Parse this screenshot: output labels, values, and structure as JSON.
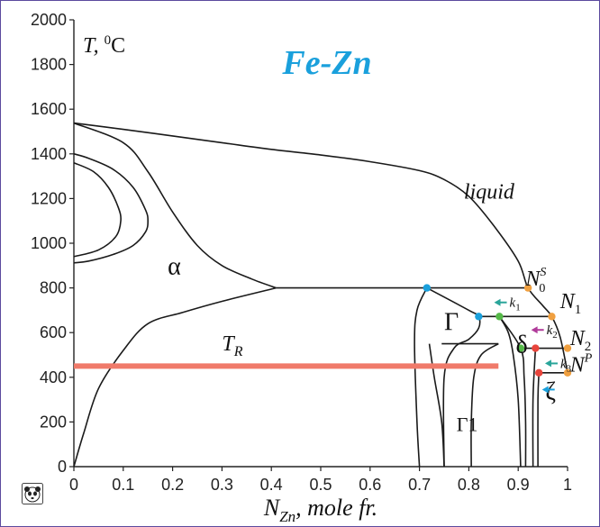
{
  "chart_data": {
    "type": "line",
    "title": "Fe-Zn",
    "title_color": "#1aa0dc",
    "xlabel": "N_Zn, mole fr.",
    "ylabel": "T, 0C",
    "xlim": [
      0,
      1
    ],
    "ylim": [
      0,
      2000
    ],
    "x_ticks": [
      0,
      0.1,
      0.2,
      0.3,
      0.4,
      0.5,
      0.6,
      0.7,
      0.8,
      0.9,
      1
    ],
    "x_tick_labels": [
      "0",
      "0.1",
      "0.2",
      "0.3",
      "0.4",
      "0.5",
      "0.6",
      "0.7",
      "0.8",
      "0.9",
      "1"
    ],
    "y_ticks": [
      0,
      200,
      400,
      600,
      800,
      1000,
      1200,
      1400,
      1600,
      1800,
      2000
    ],
    "y_tick_labels": [
      "0",
      "200",
      "400",
      "600",
      "800",
      "1000",
      "1200",
      "1400",
      "1600",
      "1800",
      "2000"
    ],
    "grid": false,
    "phase_labels": [
      {
        "text": "liquid",
        "x": 0.79,
        "y": 1200
      },
      {
        "text": "α",
        "x": 0.19,
        "y": 860
      },
      {
        "text": "Γ",
        "x": 0.75,
        "y": 610
      },
      {
        "text": "δ",
        "x": 0.895,
        "y": 510
      },
      {
        "text": "Γ1",
        "x": 0.775,
        "y": 160
      },
      {
        "text": "ζ",
        "x": 0.955,
        "y": 300
      }
    ],
    "tr_line": {
      "label": "T_R",
      "y": 450,
      "x_start": 0,
      "x_end": 0.86,
      "color": "#f07a6a"
    },
    "tr_label_pos": {
      "x": 0.3,
      "y": 520
    },
    "node_labels": [
      {
        "base": "N",
        "sub": "0",
        "sup": "S",
        "x": 0.915,
        "y": 810
      },
      {
        "base": "N",
        "sub": "1",
        "sup": "",
        "x": 0.985,
        "y": 710
      },
      {
        "base": "N",
        "sub": "2",
        "sup": "",
        "x": 1.005,
        "y": 545
      },
      {
        "base": "N",
        "sub": "",
        "sup": "P",
        "x": 1.005,
        "y": 425
      }
    ],
    "markers": [
      {
        "x": 0.715,
        "y": 800,
        "color": "#1aa0dc"
      },
      {
        "x": 0.82,
        "y": 672,
        "color": "#1aa0dc"
      },
      {
        "x": 0.92,
        "y": 800,
        "color": "#f0a040"
      },
      {
        "x": 0.968,
        "y": 672,
        "color": "#f0a040"
      },
      {
        "x": 0.862,
        "y": 672,
        "color": "#55b948"
      },
      {
        "x": 0.905,
        "y": 530,
        "color": "#55b948"
      },
      {
        "x": 0.935,
        "y": 530,
        "color": "#e8453c"
      },
      {
        "x": 0.942,
        "y": 420,
        "color": "#e8453c"
      },
      {
        "x": 1.0,
        "y": 530,
        "color": "#f0a040"
      },
      {
        "x": 1.0,
        "y": 420,
        "color": "#f0a040"
      }
    ],
    "arrows": [
      {
        "label": "k",
        "sub": "1",
        "x": 0.855,
        "y": 735,
        "color": "#2aa59a"
      },
      {
        "label": "k",
        "sub": "2",
        "x": 0.93,
        "y": 612,
        "color": "#b03b9a"
      },
      {
        "label": "k",
        "sub": "3",
        "x": 0.958,
        "y": 462,
        "color": "#2aa59a"
      },
      {
        "label": "",
        "sub": "",
        "x": 0.952,
        "y": 345,
        "color": "#1aa0dc"
      }
    ],
    "curves": [
      {
        "name": "liquidus",
        "points": [
          [
            0,
            1538
          ],
          [
            0.1,
            1510
          ],
          [
            0.2,
            1480
          ],
          [
            0.3,
            1450
          ],
          [
            0.4,
            1420
          ],
          [
            0.5,
            1395
          ],
          [
            0.6,
            1365
          ],
          [
            0.7,
            1325
          ],
          [
            0.75,
            1285
          ],
          [
            0.8,
            1210
          ],
          [
            0.85,
            1080
          ],
          [
            0.9,
            920
          ],
          [
            0.92,
            800
          ],
          [
            0.95,
            720
          ],
          [
            0.968,
            672
          ],
          [
            0.985,
            580
          ],
          [
            1.0,
            420
          ]
        ]
      },
      {
        "name": "alpha-upper",
        "points": [
          [
            0,
            1538
          ],
          [
            0.1,
            1450
          ],
          [
            0.15,
            1320
          ],
          [
            0.2,
            1140
          ],
          [
            0.25,
            990
          ],
          [
            0.3,
            900
          ],
          [
            0.36,
            840
          ],
          [
            0.41,
            800
          ]
        ]
      },
      {
        "name": "alpha-gamma-loop",
        "points": [
          [
            0,
            1400
          ],
          [
            0.03,
            1380
          ],
          [
            0.08,
            1330
          ],
          [
            0.12,
            1250
          ],
          [
            0.145,
            1150
          ],
          [
            0.15,
            1100
          ],
          [
            0.145,
            1050
          ],
          [
            0.12,
            990
          ],
          [
            0.08,
            950
          ],
          [
            0.03,
            920
          ],
          [
            0,
            912
          ]
        ]
      },
      {
        "name": "alpha-gamma-loop-inner",
        "points": [
          [
            0,
            1360
          ],
          [
            0.04,
            1320
          ],
          [
            0.07,
            1250
          ],
          [
            0.09,
            1160
          ],
          [
            0.095,
            1100
          ],
          [
            0.085,
            1030
          ],
          [
            0.05,
            970
          ],
          [
            0,
            940
          ]
        ]
      },
      {
        "name": "alpha-solvus-lower",
        "points": [
          [
            0,
            0
          ],
          [
            0.02,
            150
          ],
          [
            0.05,
            350
          ],
          [
            0.1,
            520
          ],
          [
            0.15,
            640
          ],
          [
            0.22,
            690
          ],
          [
            0.3,
            740
          ],
          [
            0.41,
            800
          ]
        ]
      },
      {
        "name": "peritectic-800",
        "points": [
          [
            0.41,
            800
          ],
          [
            0.92,
            800
          ]
        ]
      },
      {
        "name": "gamma-left",
        "points": [
          [
            0.715,
            800
          ],
          [
            0.695,
            700
          ],
          [
            0.69,
            550
          ],
          [
            0.695,
            200
          ],
          [
            0.7,
            0
          ]
        ]
      },
      {
        "name": "gamma-right",
        "points": [
          [
            0.715,
            800
          ],
          [
            0.8,
            700
          ],
          [
            0.82,
            672
          ],
          [
            0.82,
            620
          ],
          [
            0.8,
            570
          ],
          [
            0.77,
            530
          ],
          [
            0.75,
            400
          ],
          [
            0.75,
            0
          ]
        ]
      },
      {
        "name": "peritectic-672",
        "points": [
          [
            0.82,
            672
          ],
          [
            0.968,
            672
          ]
        ]
      },
      {
        "name": "gamma1-left",
        "points": [
          [
            0.72,
            550
          ],
          [
            0.73,
            400
          ],
          [
            0.745,
            200
          ],
          [
            0.75,
            0
          ]
        ]
      },
      {
        "name": "gamma1-box",
        "points": [
          [
            0.745,
            550
          ],
          [
            0.86,
            550
          ]
        ]
      },
      {
        "name": "gamma1-right",
        "points": [
          [
            0.86,
            550
          ],
          [
            0.825,
            500
          ],
          [
            0.81,
            400
          ],
          [
            0.805,
            200
          ],
          [
            0.805,
            0
          ]
        ]
      },
      {
        "name": "delta-left",
        "points": [
          [
            0.862,
            672
          ],
          [
            0.88,
            600
          ],
          [
            0.89,
            500
          ],
          [
            0.9,
            300
          ],
          [
            0.905,
            0
          ]
        ]
      },
      {
        "name": "delta-right",
        "points": [
          [
            0.862,
            672
          ],
          [
            0.905,
            530
          ],
          [
            0.912,
            400
          ],
          [
            0.915,
            200
          ],
          [
            0.915,
            0
          ]
        ]
      },
      {
        "name": "peritectic-530",
        "points": [
          [
            0.905,
            530
          ],
          [
            1.0,
            530
          ]
        ]
      },
      {
        "name": "zeta-left",
        "points": [
          [
            0.935,
            530
          ],
          [
            0.93,
            300
          ],
          [
            0.93,
            0
          ]
        ]
      },
      {
        "name": "zeta-right",
        "points": [
          [
            0.942,
            420
          ],
          [
            0.94,
            300
          ],
          [
            0.94,
            0
          ]
        ]
      },
      {
        "name": "peritectic-420",
        "points": [
          [
            0.942,
            420
          ],
          [
            1.0,
            420
          ]
        ]
      }
    ]
  }
}
